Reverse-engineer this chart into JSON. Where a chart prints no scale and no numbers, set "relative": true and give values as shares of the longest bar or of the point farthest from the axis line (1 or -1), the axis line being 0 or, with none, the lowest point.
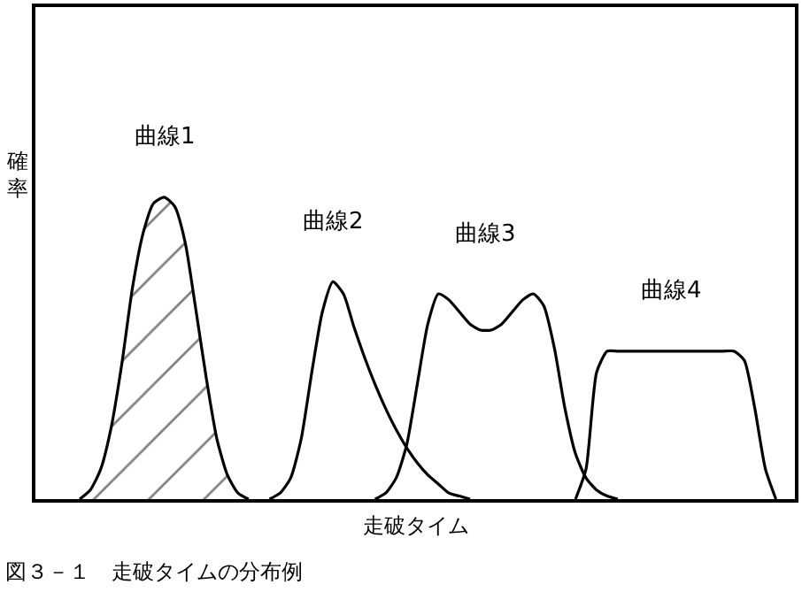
{
  "chart_data": {
    "type": "line",
    "relative": true,
    "xlabel": "走破タイム",
    "ylabel": "確率",
    "legend": false,
    "marker": "none",
    "annotations": [
      "図３－１　走破タイムの分布例"
    ],
    "categories": [
      null,
      null,
      null,
      null,
      null,
      null,
      null,
      null,
      null,
      null,
      null,
      null,
      null,
      null,
      null,
      null,
      null,
      null,
      null,
      null,
      null,
      null,
      null,
      null,
      null,
      null,
      null,
      null,
      null,
      null,
      null,
      null,
      null,
      null,
      null,
      null,
      null,
      null,
      null,
      null,
      null,
      null,
      null,
      null,
      null,
      null,
      null,
      null,
      null,
      null,
      null,
      null,
      null,
      null,
      null,
      null,
      null,
      null,
      null,
      null,
      null,
      null,
      null,
      null,
      null,
      null,
      null,
      null,
      null,
      null,
      null,
      null
    ],
    "series": [
      {
        "name": "曲線1",
        "type": "area",
        "color": "#000000",
        "values": [
          null,
          null,
          null,
          null,
          0,
          0.03,
          0.1,
          0.24,
          0.45,
          0.7,
          0.88,
          0.98,
          1,
          0.97,
          0.85,
          0.63,
          0.4,
          0.2,
          0.08,
          0.02,
          0,
          null,
          null,
          null,
          null,
          null,
          null,
          null,
          null,
          null,
          null,
          null,
          null,
          null,
          null,
          null,
          null,
          null,
          null,
          null,
          null,
          null,
          null,
          null,
          null,
          null,
          null,
          null,
          null,
          null,
          null,
          null,
          null,
          null,
          null,
          null,
          null,
          null,
          null,
          null,
          null,
          null,
          null,
          null,
          null,
          null,
          null,
          null,
          null,
          null,
          null,
          null
        ]
      },
      {
        "name": "曲線2",
        "color": "#000000",
        "values": [
          null,
          null,
          null,
          null,
          null,
          null,
          null,
          null,
          null,
          null,
          null,
          null,
          null,
          null,
          null,
          null,
          null,
          null,
          null,
          null,
          null,
          null,
          0,
          0.02,
          0.07,
          0.2,
          0.42,
          0.62,
          0.72,
          0.68,
          0.57,
          0.47,
          0.38,
          0.3,
          0.23,
          0.17,
          0.12,
          0.08,
          0.05,
          0.02,
          0.01,
          0,
          null,
          null,
          null,
          null,
          null,
          null,
          null,
          null,
          null,
          null,
          null,
          null,
          null,
          null,
          null,
          null,
          null,
          null,
          null,
          null,
          null,
          null,
          null,
          null,
          null,
          null,
          null,
          null,
          null,
          null
        ]
      },
      {
        "name": "曲線3",
        "color": "#000000",
        "values": [
          null,
          null,
          null,
          null,
          null,
          null,
          null,
          null,
          null,
          null,
          null,
          null,
          null,
          null,
          null,
          null,
          null,
          null,
          null,
          null,
          null,
          null,
          null,
          null,
          null,
          null,
          null,
          null,
          null,
          null,
          null,
          null,
          0,
          0.02,
          0.07,
          0.18,
          0.38,
          0.58,
          0.68,
          0.66,
          0.62,
          0.58,
          0.56,
          0.56,
          0.58,
          0.62,
          0.66,
          0.68,
          0.64,
          0.5,
          0.3,
          0.15,
          0.07,
          0.03,
          0.01,
          0,
          null,
          null,
          null,
          null,
          null,
          null,
          null,
          null,
          null,
          null,
          null,
          null,
          null,
          null,
          null,
          null
        ]
      },
      {
        "name": "曲線4",
        "color": "#000000",
        "values": [
          null,
          null,
          null,
          null,
          null,
          null,
          null,
          null,
          null,
          null,
          null,
          null,
          null,
          null,
          null,
          null,
          null,
          null,
          null,
          null,
          null,
          null,
          null,
          null,
          null,
          null,
          null,
          null,
          null,
          null,
          null,
          null,
          null,
          null,
          null,
          null,
          null,
          null,
          null,
          null,
          null,
          null,
          null,
          null,
          null,
          null,
          null,
          null,
          null,
          null,
          null,
          0,
          0.1,
          0.42,
          0.49,
          0.49,
          0.49,
          0.49,
          0.49,
          0.49,
          0.49,
          0.49,
          0.49,
          0.49,
          0.49,
          0.49,
          0.49,
          0.46,
          0.3,
          0.1,
          0,
          null
        ]
      }
    ]
  }
}
